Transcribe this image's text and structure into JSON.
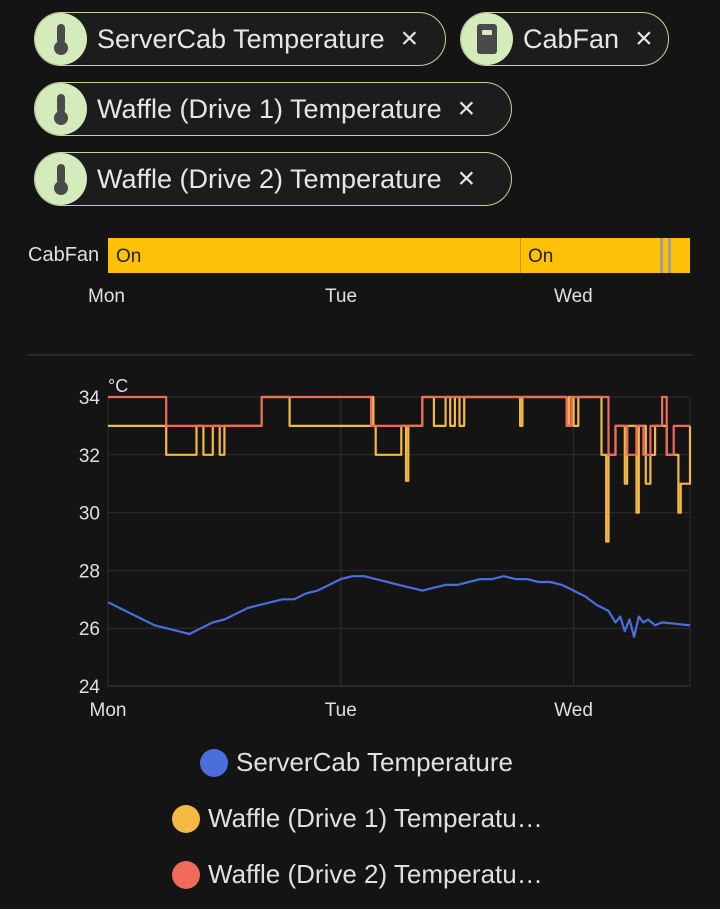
{
  "chips": [
    {
      "label": "ServerCab Temperature",
      "icon": "thermometer-icon"
    },
    {
      "label": "CabFan",
      "icon": "device-icon"
    },
    {
      "label": "Waffle (Drive 1) Temperature",
      "icon": "thermometer-icon"
    },
    {
      "label": "Waffle (Drive 2) Temperature",
      "icon": "thermometer-icon"
    }
  ],
  "close_glyph": "×",
  "timeline": {
    "entity": "CabFan",
    "segments": [
      {
        "label": "On"
      },
      {
        "label": "On"
      }
    ],
    "ticks": [
      "Mon",
      "Tue",
      "Wed"
    ],
    "color": "#ffc107"
  },
  "chart_data": {
    "type": "line",
    "unit": "°C",
    "ylim": [
      24,
      34
    ],
    "yticks": [
      24,
      26,
      28,
      30,
      32,
      34
    ],
    "xticks": [
      "Mon",
      "Tue",
      "Wed"
    ],
    "grid": true,
    "legend_position": "bottom",
    "series": [
      {
        "name": "ServerCab Temperature",
        "color": "#4a6fdc",
        "points": [
          [
            0,
            26.9
          ],
          [
            0.05,
            26.7
          ],
          [
            0.1,
            26.5
          ],
          [
            0.15,
            26.3
          ],
          [
            0.2,
            26.1
          ],
          [
            0.25,
            26.0
          ],
          [
            0.3,
            25.9
          ],
          [
            0.35,
            25.8
          ],
          [
            0.4,
            26.0
          ],
          [
            0.45,
            26.2
          ],
          [
            0.5,
            26.3
          ],
          [
            0.55,
            26.5
          ],
          [
            0.6,
            26.7
          ],
          [
            0.65,
            26.8
          ],
          [
            0.7,
            26.9
          ],
          [
            0.75,
            27.0
          ],
          [
            0.8,
            27.0
          ],
          [
            0.85,
            27.2
          ],
          [
            0.9,
            27.3
          ],
          [
            0.95,
            27.5
          ],
          [
            1.0,
            27.7
          ],
          [
            1.05,
            27.8
          ],
          [
            1.1,
            27.8
          ],
          [
            1.15,
            27.7
          ],
          [
            1.2,
            27.6
          ],
          [
            1.25,
            27.5
          ],
          [
            1.3,
            27.4
          ],
          [
            1.35,
            27.3
          ],
          [
            1.4,
            27.4
          ],
          [
            1.45,
            27.5
          ],
          [
            1.5,
            27.5
          ],
          [
            1.55,
            27.6
          ],
          [
            1.6,
            27.7
          ],
          [
            1.65,
            27.7
          ],
          [
            1.7,
            27.8
          ],
          [
            1.75,
            27.7
          ],
          [
            1.8,
            27.7
          ],
          [
            1.85,
            27.6
          ],
          [
            1.9,
            27.6
          ],
          [
            1.95,
            27.5
          ],
          [
            2.0,
            27.3
          ],
          [
            2.05,
            27.1
          ],
          [
            2.1,
            26.8
          ],
          [
            2.15,
            26.6
          ],
          [
            2.18,
            26.2
          ],
          [
            2.2,
            26.4
          ],
          [
            2.22,
            25.9
          ],
          [
            2.24,
            26.3
          ],
          [
            2.26,
            25.7
          ],
          [
            2.28,
            26.4
          ],
          [
            2.3,
            26.2
          ],
          [
            2.32,
            26.3
          ],
          [
            2.35,
            26.1
          ],
          [
            2.38,
            26.2
          ],
          [
            2.5,
            26.1
          ]
        ]
      },
      {
        "name": "Waffle (Drive 1) Temperature",
        "color": "#f4b942",
        "points": [
          [
            0,
            33
          ],
          [
            0.25,
            33
          ],
          [
            0.25,
            32
          ],
          [
            0.38,
            32
          ],
          [
            0.38,
            33
          ],
          [
            0.41,
            33
          ],
          [
            0.41,
            32
          ],
          [
            0.45,
            32
          ],
          [
            0.45,
            33
          ],
          [
            0.48,
            33
          ],
          [
            0.48,
            32
          ],
          [
            0.5,
            32
          ],
          [
            0.5,
            33
          ],
          [
            0.66,
            33
          ],
          [
            0.66,
            34
          ],
          [
            0.78,
            34
          ],
          [
            0.78,
            33
          ],
          [
            1.13,
            33
          ],
          [
            1.13,
            34
          ],
          [
            1.12,
            34
          ],
          [
            1.14,
            34
          ],
          [
            1.14,
            33
          ],
          [
            1.15,
            33
          ],
          [
            1.15,
            32
          ],
          [
            1.26,
            32
          ],
          [
            1.26,
            33
          ],
          [
            1.28,
            33
          ],
          [
            1.28,
            31.1
          ],
          [
            1.29,
            31.1
          ],
          [
            1.29,
            33
          ],
          [
            1.35,
            33
          ],
          [
            1.35,
            34
          ],
          [
            1.4,
            34
          ],
          [
            1.4,
            33
          ],
          [
            1.45,
            33
          ],
          [
            1.45,
            34
          ],
          [
            1.47,
            34
          ],
          [
            1.47,
            33
          ],
          [
            1.49,
            33
          ],
          [
            1.49,
            34
          ],
          [
            1.51,
            34
          ],
          [
            1.51,
            33
          ],
          [
            1.53,
            33
          ],
          [
            1.53,
            34
          ],
          [
            1.77,
            34
          ],
          [
            1.77,
            33
          ],
          [
            1.78,
            33
          ],
          [
            1.78,
            34
          ],
          [
            1.97,
            34
          ],
          [
            1.97,
            33
          ],
          [
            1.98,
            33
          ],
          [
            1.98,
            34
          ],
          [
            2.0,
            34
          ],
          [
            2.0,
            33
          ],
          [
            2.02,
            33
          ],
          [
            2.02,
            34
          ],
          [
            2.12,
            34
          ],
          [
            2.12,
            32
          ],
          [
            2.14,
            32
          ],
          [
            2.14,
            29.0
          ],
          [
            2.15,
            29.0
          ],
          [
            2.15,
            32
          ],
          [
            2.18,
            32
          ],
          [
            2.18,
            33
          ],
          [
            2.22,
            33
          ],
          [
            2.22,
            31.0
          ],
          [
            2.23,
            31.0
          ],
          [
            2.23,
            33
          ],
          [
            2.27,
            33
          ],
          [
            2.27,
            30.0
          ],
          [
            2.28,
            30.0
          ],
          [
            2.28,
            33
          ],
          [
            2.31,
            33
          ],
          [
            2.31,
            31.0
          ],
          [
            2.33,
            31.0
          ],
          [
            2.33,
            32
          ],
          [
            2.35,
            32
          ],
          [
            2.35,
            33
          ],
          [
            2.4,
            33
          ],
          [
            2.4,
            32
          ],
          [
            2.45,
            32
          ],
          [
            2.45,
            30.0
          ],
          [
            2.46,
            30.0
          ],
          [
            2.46,
            31
          ],
          [
            2.5,
            31
          ],
          [
            2.5,
            33
          ]
        ]
      },
      {
        "name": "Waffle (Drive 2) Temperature",
        "color": "#f06a5a",
        "points": [
          [
            0,
            34
          ],
          [
            0.25,
            34
          ],
          [
            0.25,
            33
          ],
          [
            0.66,
            33
          ],
          [
            0.66,
            34
          ],
          [
            1.13,
            34
          ],
          [
            1.13,
            33
          ],
          [
            1.35,
            33
          ],
          [
            1.35,
            34
          ],
          [
            1.97,
            34
          ],
          [
            1.97,
            33
          ],
          [
            1.99,
            33
          ],
          [
            1.99,
            34
          ],
          [
            2.15,
            34
          ],
          [
            2.15,
            32
          ],
          [
            2.18,
            32
          ],
          [
            2.18,
            33
          ],
          [
            2.23,
            33
          ],
          [
            2.23,
            32
          ],
          [
            2.27,
            32
          ],
          [
            2.27,
            33
          ],
          [
            2.3,
            33
          ],
          [
            2.3,
            32
          ],
          [
            2.33,
            32
          ],
          [
            2.33,
            33
          ],
          [
            2.38,
            33
          ],
          [
            2.38,
            34
          ],
          [
            2.4,
            34
          ],
          [
            2.4,
            32
          ],
          [
            2.43,
            32
          ],
          [
            2.43,
            33
          ],
          [
            2.5,
            33
          ]
        ]
      }
    ]
  },
  "legend": [
    {
      "label": "ServerCab Temperature",
      "color": "#4a6fdc"
    },
    {
      "label": "Waffle (Drive 1) Temperatu…",
      "color": "#f4b942"
    },
    {
      "label": "Waffle (Drive 2) Temperatu…",
      "color": "#f06a5a"
    }
  ]
}
